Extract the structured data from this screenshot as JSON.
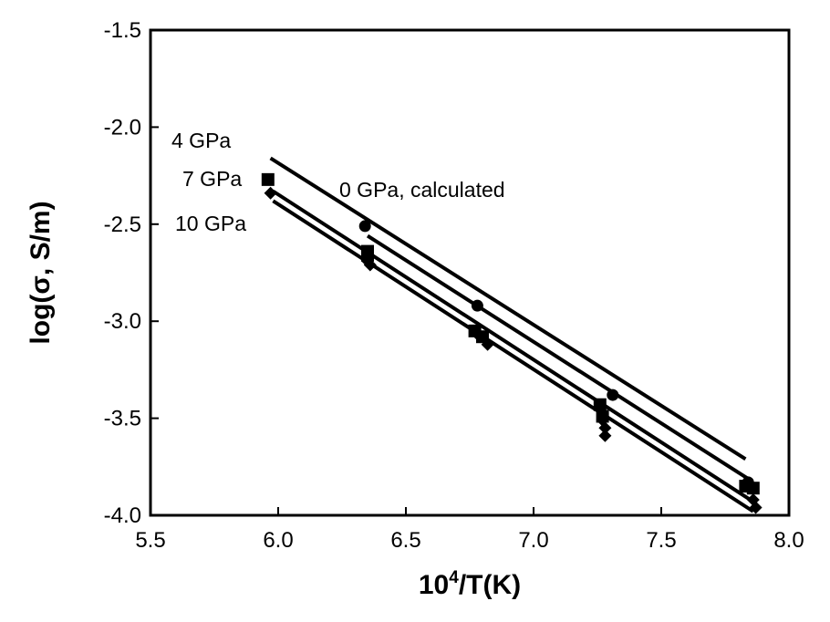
{
  "chart_data": {
    "type": "scatter",
    "xlabel_base": "10",
    "xlabel_sup": "4",
    "xlabel_rest": "/T(K)",
    "ylabel": "log(σ,  S/m)",
    "xlim": [
      5.5,
      8.0
    ],
    "ylim": [
      -4.0,
      -1.5
    ],
    "x_ticks": [
      "5.5",
      "6.0",
      "6.5",
      "7.0",
      "7.5",
      "8.0"
    ],
    "y_ticks": [
      "-1.5",
      "-2.0",
      "-2.5",
      "-3.0",
      "-3.5",
      "-4.0"
    ],
    "grid": false,
    "legend": "none",
    "annotations": {
      "p4": "4 GPa",
      "p7": "7 GPa",
      "p10": "10 GPa",
      "p0": "0 GPa, calculated"
    },
    "lines": [
      {
        "key": "p0",
        "x": [
          5.97,
          7.83
        ],
        "y": [
          -2.16,
          -3.71
        ]
      },
      {
        "key": "p4",
        "x": [
          6.35,
          7.85
        ],
        "y": [
          -2.56,
          -3.82
        ]
      },
      {
        "key": "p7",
        "x": [
          5.98,
          7.86
        ],
        "y": [
          -2.33,
          -3.93
        ]
      },
      {
        "key": "p10",
        "x": [
          5.98,
          7.86
        ],
        "y": [
          -2.38,
          -3.98
        ]
      }
    ],
    "series": [
      {
        "key": "p4",
        "marker": "circle",
        "x": [
          6.34,
          6.78,
          7.31,
          7.84
        ],
        "y": [
          -2.51,
          -2.92,
          -3.38,
          -3.83
        ]
      },
      {
        "key": "p7",
        "marker": "square",
        "x": [
          5.96,
          6.35,
          6.35,
          6.77,
          6.8,
          7.26,
          7.27,
          7.83,
          7.86
        ],
        "y": [
          -2.27,
          -2.64,
          -2.66,
          -3.05,
          -3.08,
          -3.43,
          -3.49,
          -3.85,
          -3.86
        ]
      },
      {
        "key": "p10",
        "marker": "diamond",
        "x": [
          5.97,
          6.35,
          6.36,
          6.79,
          6.82,
          7.27,
          7.28,
          7.28,
          7.86,
          7.87
        ],
        "y": [
          -2.34,
          -2.69,
          -2.71,
          -3.08,
          -3.12,
          -3.51,
          -3.55,
          -3.59,
          -3.92,
          -3.96
        ]
      }
    ]
  }
}
